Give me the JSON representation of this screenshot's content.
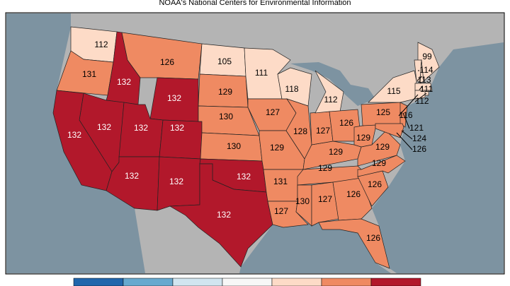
{
  "title": "NOAA's National Centers for Environmental Information",
  "legend_colors": [
    "#2166ac",
    "#67a9cf",
    "#d1e5f0",
    "#f7f7f7",
    "#fddbc7",
    "#ef8a62",
    "#b2182b"
  ],
  "regions": [
    {
      "value": 112,
      "color": "#fddbc7"
    },
    {
      "value": 131,
      "color": "#ef8a62"
    },
    {
      "value": 132,
      "color": "#b2182b"
    },
    {
      "value": 126,
      "color": "#ef8a62"
    },
    {
      "value": 132,
      "color": "#b2182b"
    },
    {
      "value": 132,
      "color": "#b2182b"
    },
    {
      "value": 132,
      "color": "#b2182b"
    },
    {
      "value": 132,
      "color": "#b2182b"
    },
    {
      "value": 132,
      "color": "#b2182b"
    },
    {
      "value": 132,
      "color": "#b2182b"
    },
    {
      "value": 132,
      "color": "#b2182b"
    },
    {
      "value": 105,
      "color": "#fddbc7"
    },
    {
      "value": 129,
      "color": "#ef8a62"
    },
    {
      "value": 130,
      "color": "#ef8a62"
    },
    {
      "value": 130,
      "color": "#ef8a62"
    },
    {
      "value": 132,
      "color": "#b2182b"
    },
    {
      "value": 132,
      "color": "#b2182b"
    },
    {
      "value": 111,
      "color": "#fddbc7"
    },
    {
      "value": 127,
      "color": "#ef8a62"
    },
    {
      "value": 129,
      "color": "#ef8a62"
    },
    {
      "value": 131,
      "color": "#ef8a62"
    },
    {
      "value": 127,
      "color": "#ef8a62"
    },
    {
      "value": 118,
      "color": "#fddbc7"
    },
    {
      "value": 128,
      "color": "#ef8a62"
    },
    {
      "value": 130,
      "color": "#ef8a62"
    },
    {
      "value": 127,
      "color": "#ef8a62"
    },
    {
      "value": 129,
      "color": "#ef8a62"
    },
    {
      "value": 129,
      "color": "#ef8a62"
    },
    {
      "value": 127,
      "color": "#ef8a62"
    },
    {
      "value": 112,
      "color": "#fddbc7"
    },
    {
      "value": 126,
      "color": "#ef8a62"
    },
    {
      "value": 126,
      "color": "#ef8a62"
    },
    {
      "value": 126,
      "color": "#ef8a62"
    },
    {
      "value": 126,
      "color": "#ef8a62"
    },
    {
      "value": 129,
      "color": "#ef8a62"
    },
    {
      "value": 129,
      "color": "#ef8a62"
    },
    {
      "value": 129,
      "color": "#ef8a62"
    },
    {
      "value": 125,
      "color": "#ef8a62"
    },
    {
      "value": 115,
      "color": "#fddbc7"
    },
    {
      "value": 99,
      "color": "#fddbc7"
    },
    {
      "value": 114,
      "color": "#fddbc7"
    },
    {
      "value": 113,
      "color": "#fddbc7"
    },
    {
      "value": 111,
      "color": "#fddbc7"
    },
    {
      "value": 112,
      "color": "#fddbc7"
    },
    {
      "value": 116,
      "color": "#fddbc7"
    },
    {
      "value": 121,
      "color": "#ef8a62"
    },
    {
      "value": 124,
      "color": "#ef8a62"
    },
    {
      "value": 126,
      "color": "#ef8a62"
    }
  ]
}
